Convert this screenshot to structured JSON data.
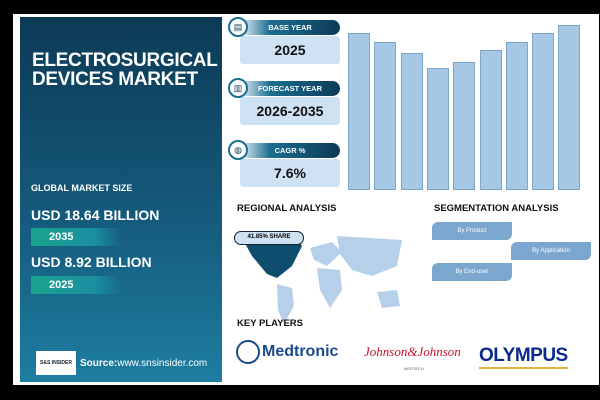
{
  "title": "ELECTROSURGICAL DEVICES MARKET",
  "global_market_size": {
    "label": "GLOBAL MARKET SIZE",
    "forecast_value": "USD 18.64 BILLION",
    "forecast_year": "2035",
    "base_value": "USD 8.92 BILLION",
    "base_year": "2025"
  },
  "source": {
    "label": "Source:",
    "url": "www.snsinsider.com",
    "logo_text": "S&S INSIDER Strategy & Stats"
  },
  "kpis": [
    {
      "label": "BASE YEAR",
      "value": "2025",
      "icon": "document-icon"
    },
    {
      "label": "FORECAST YEAR",
      "value": "2026-2035",
      "icon": "chart-icon"
    },
    {
      "label": "CAGR %",
      "value": "7.6%",
      "icon": "globe-growth-icon"
    }
  ],
  "regional": {
    "title": "REGIONAL ANALYSIS",
    "share": "41.85% SHARE"
  },
  "segmentation": {
    "title": "SEGMENTATION ANALYSIS",
    "items": [
      "By Product",
      "By Application",
      "By End-user"
    ]
  },
  "key_players": {
    "title": "KEY PLAYERS",
    "companies": [
      "Medtronic",
      "Johnson&Johnson",
      "OLYMPUS"
    ],
    "jj_sub": "MEDTECH"
  },
  "chart_data": {
    "type": "bar",
    "values": [
      157,
      148,
      137,
      122,
      128,
      140,
      148,
      157,
      165
    ],
    "colors": {
      "bar": "#a6c8e4"
    }
  }
}
